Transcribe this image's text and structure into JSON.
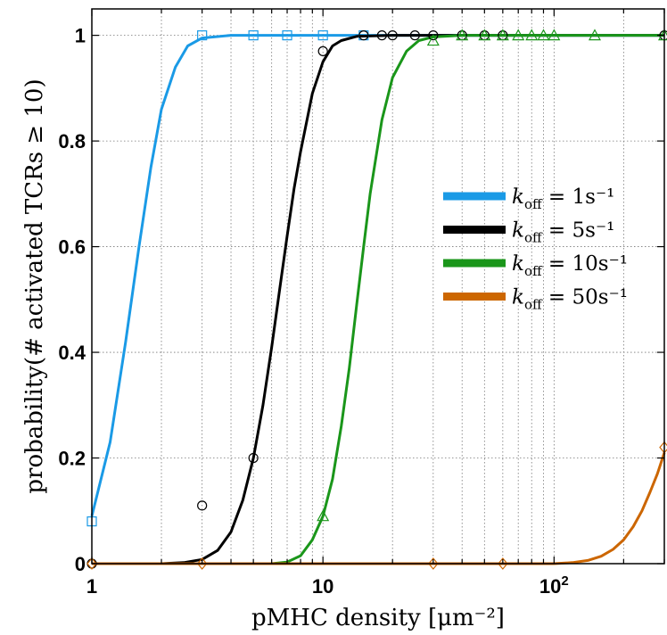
{
  "chart_data": {
    "type": "line",
    "xlabel": "pMHC density [μm⁻²]",
    "ylabel": "probability(# activated TCRs ≥ 10)",
    "x_scale": "log",
    "xlim": [
      1,
      300
    ],
    "ylim": [
      0,
      1.05
    ],
    "grid": true,
    "legend_position": "right",
    "x_ticks": [
      {
        "value": 1,
        "label": "1"
      },
      {
        "value": 10,
        "label": "10"
      },
      {
        "value": 100,
        "label": "10",
        "sup": "2"
      }
    ],
    "y_ticks": [
      {
        "value": 0,
        "label": "0"
      },
      {
        "value": 0.2,
        "label": "0.2"
      },
      {
        "value": 0.4,
        "label": "0.4"
      },
      {
        "value": 0.6,
        "label": "0.6"
      },
      {
        "value": 0.8,
        "label": "0.8"
      },
      {
        "value": 1,
        "label": "1"
      }
    ],
    "series": [
      {
        "name": "k_off = 1s⁻¹",
        "color": "#1a9ae6",
        "marker": "square",
        "points": [
          {
            "x": 1,
            "y": 0.08
          },
          {
            "x": 3,
            "y": 1.0
          },
          {
            "x": 5,
            "y": 1.0
          },
          {
            "x": 7,
            "y": 1.0
          },
          {
            "x": 10,
            "y": 1.0
          },
          {
            "x": 15,
            "y": 1.0
          }
        ],
        "curve": [
          {
            "x": 1.0,
            "y": 0.09
          },
          {
            "x": 1.2,
            "y": 0.23
          },
          {
            "x": 1.4,
            "y": 0.42
          },
          {
            "x": 1.6,
            "y": 0.6
          },
          {
            "x": 1.8,
            "y": 0.75
          },
          {
            "x": 2.0,
            "y": 0.86
          },
          {
            "x": 2.3,
            "y": 0.94
          },
          {
            "x": 2.6,
            "y": 0.98
          },
          {
            "x": 3.0,
            "y": 0.995
          },
          {
            "x": 4.0,
            "y": 1.0
          },
          {
            "x": 300,
            "y": 1.0
          }
        ]
      },
      {
        "name": "k_off = 5s⁻¹",
        "color": "#000000",
        "marker": "circle",
        "points": [
          {
            "x": 1,
            "y": 0.0
          },
          {
            "x": 3,
            "y": 0.11
          },
          {
            "x": 5,
            "y": 0.2
          },
          {
            "x": 10,
            "y": 0.97
          },
          {
            "x": 15,
            "y": 1.0
          },
          {
            "x": 18,
            "y": 1.0
          },
          {
            "x": 20,
            "y": 1.0
          },
          {
            "x": 25,
            "y": 1.0
          },
          {
            "x": 30,
            "y": 1.0
          },
          {
            "x": 40,
            "y": 1.0
          },
          {
            "x": 50,
            "y": 1.0
          },
          {
            "x": 60,
            "y": 1.0
          },
          {
            "x": 300,
            "y": 1.0
          }
        ],
        "curve": [
          {
            "x": 1.0,
            "y": 0.0
          },
          {
            "x": 2.0,
            "y": 0.0
          },
          {
            "x": 2.5,
            "y": 0.002
          },
          {
            "x": 3.0,
            "y": 0.008
          },
          {
            "x": 3.5,
            "y": 0.025
          },
          {
            "x": 4.0,
            "y": 0.06
          },
          {
            "x": 4.5,
            "y": 0.12
          },
          {
            "x": 5.0,
            "y": 0.2
          },
          {
            "x": 5.5,
            "y": 0.3
          },
          {
            "x": 6.0,
            "y": 0.41
          },
          {
            "x": 6.5,
            "y": 0.52
          },
          {
            "x": 7.0,
            "y": 0.62
          },
          {
            "x": 7.5,
            "y": 0.71
          },
          {
            "x": 8.0,
            "y": 0.78
          },
          {
            "x": 9.0,
            "y": 0.89
          },
          {
            "x": 10.0,
            "y": 0.95
          },
          {
            "x": 11.0,
            "y": 0.98
          },
          {
            "x": 12.0,
            "y": 0.99
          },
          {
            "x": 14.0,
            "y": 0.998
          },
          {
            "x": 20.0,
            "y": 1.0
          },
          {
            "x": 300,
            "y": 1.0
          }
        ]
      },
      {
        "name": "k_off = 10s⁻¹",
        "color": "#1a961a",
        "marker": "triangle",
        "points": [
          {
            "x": 10,
            "y": 0.09
          },
          {
            "x": 30,
            "y": 0.99
          },
          {
            "x": 40,
            "y": 1.0
          },
          {
            "x": 50,
            "y": 1.0
          },
          {
            "x": 60,
            "y": 1.0
          },
          {
            "x": 70,
            "y": 1.0
          },
          {
            "x": 80,
            "y": 1.0
          },
          {
            "x": 90,
            "y": 1.0
          },
          {
            "x": 100,
            "y": 1.0
          },
          {
            "x": 150,
            "y": 1.0
          },
          {
            "x": 300,
            "y": 1.0
          }
        ],
        "curve": [
          {
            "x": 1.0,
            "y": 0.0
          },
          {
            "x": 6.0,
            "y": 0.0
          },
          {
            "x": 7.0,
            "y": 0.003
          },
          {
            "x": 8.0,
            "y": 0.015
          },
          {
            "x": 9.0,
            "y": 0.045
          },
          {
            "x": 10.0,
            "y": 0.09
          },
          {
            "x": 11.0,
            "y": 0.16
          },
          {
            "x": 12.0,
            "y": 0.26
          },
          {
            "x": 13.0,
            "y": 0.37
          },
          {
            "x": 14.0,
            "y": 0.49
          },
          {
            "x": 15.0,
            "y": 0.6
          },
          {
            "x": 16.0,
            "y": 0.7
          },
          {
            "x": 18.0,
            "y": 0.84
          },
          {
            "x": 20.0,
            "y": 0.92
          },
          {
            "x": 23.0,
            "y": 0.97
          },
          {
            "x": 26.0,
            "y": 0.99
          },
          {
            "x": 30.0,
            "y": 0.997
          },
          {
            "x": 40.0,
            "y": 1.0
          },
          {
            "x": 300,
            "y": 1.0
          }
        ]
      },
      {
        "name": "k_off = 50s⁻¹",
        "color": "#cc6600",
        "marker": "diamond",
        "points": [
          {
            "x": 1,
            "y": 0.0
          },
          {
            "x": 3,
            "y": 0.0
          },
          {
            "x": 30,
            "y": 0.0
          },
          {
            "x": 60,
            "y": 0.0
          },
          {
            "x": 300,
            "y": 0.22
          }
        ],
        "curve": [
          {
            "x": 1.0,
            "y": 0.0
          },
          {
            "x": 100.0,
            "y": 0.0
          },
          {
            "x": 120.0,
            "y": 0.002
          },
          {
            "x": 140.0,
            "y": 0.006
          },
          {
            "x": 160.0,
            "y": 0.014
          },
          {
            "x": 180.0,
            "y": 0.027
          },
          {
            "x": 200.0,
            "y": 0.045
          },
          {
            "x": 220.0,
            "y": 0.07
          },
          {
            "x": 240.0,
            "y": 0.1
          },
          {
            "x": 260.0,
            "y": 0.135
          },
          {
            "x": 280.0,
            "y": 0.17
          },
          {
            "x": 300.0,
            "y": 0.21
          }
        ]
      }
    ]
  }
}
